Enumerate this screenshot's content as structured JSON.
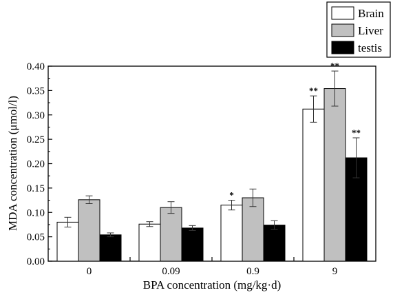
{
  "chart_data": {
    "type": "bar",
    "xlabel": "BPA concentration (mg/kg·d)",
    "ylabel": "MDA concentration (μmol/l)",
    "categories": [
      "0",
      "0.09",
      "0.9",
      "9"
    ],
    "ylim": [
      0,
      0.4
    ],
    "yticks": [
      "0.00",
      "0.05",
      "0.10",
      "0.15",
      "0.20",
      "0.25",
      "0.30",
      "0.35",
      "0.40"
    ],
    "legend_position": "top-right",
    "series": [
      {
        "name": "Brain",
        "color": "#ffffff",
        "values": [
          0.08,
          0.076,
          0.115,
          0.312
        ],
        "errors": [
          0.01,
          0.005,
          0.01,
          0.027
        ],
        "annotations": [
          "",
          "",
          "*",
          "**"
        ]
      },
      {
        "name": "Liver",
        "color": "#c0c0c0",
        "values": [
          0.126,
          0.11,
          0.13,
          0.354
        ],
        "errors": [
          0.008,
          0.012,
          0.018,
          0.036
        ],
        "annotations": [
          "",
          "",
          "",
          "**"
        ]
      },
      {
        "name": "testis",
        "color": "#000000",
        "values": [
          0.054,
          0.068,
          0.074,
          0.212
        ],
        "errors": [
          0.004,
          0.005,
          0.009,
          0.041
        ],
        "annotations": [
          "",
          "",
          "",
          "**"
        ]
      }
    ]
  }
}
